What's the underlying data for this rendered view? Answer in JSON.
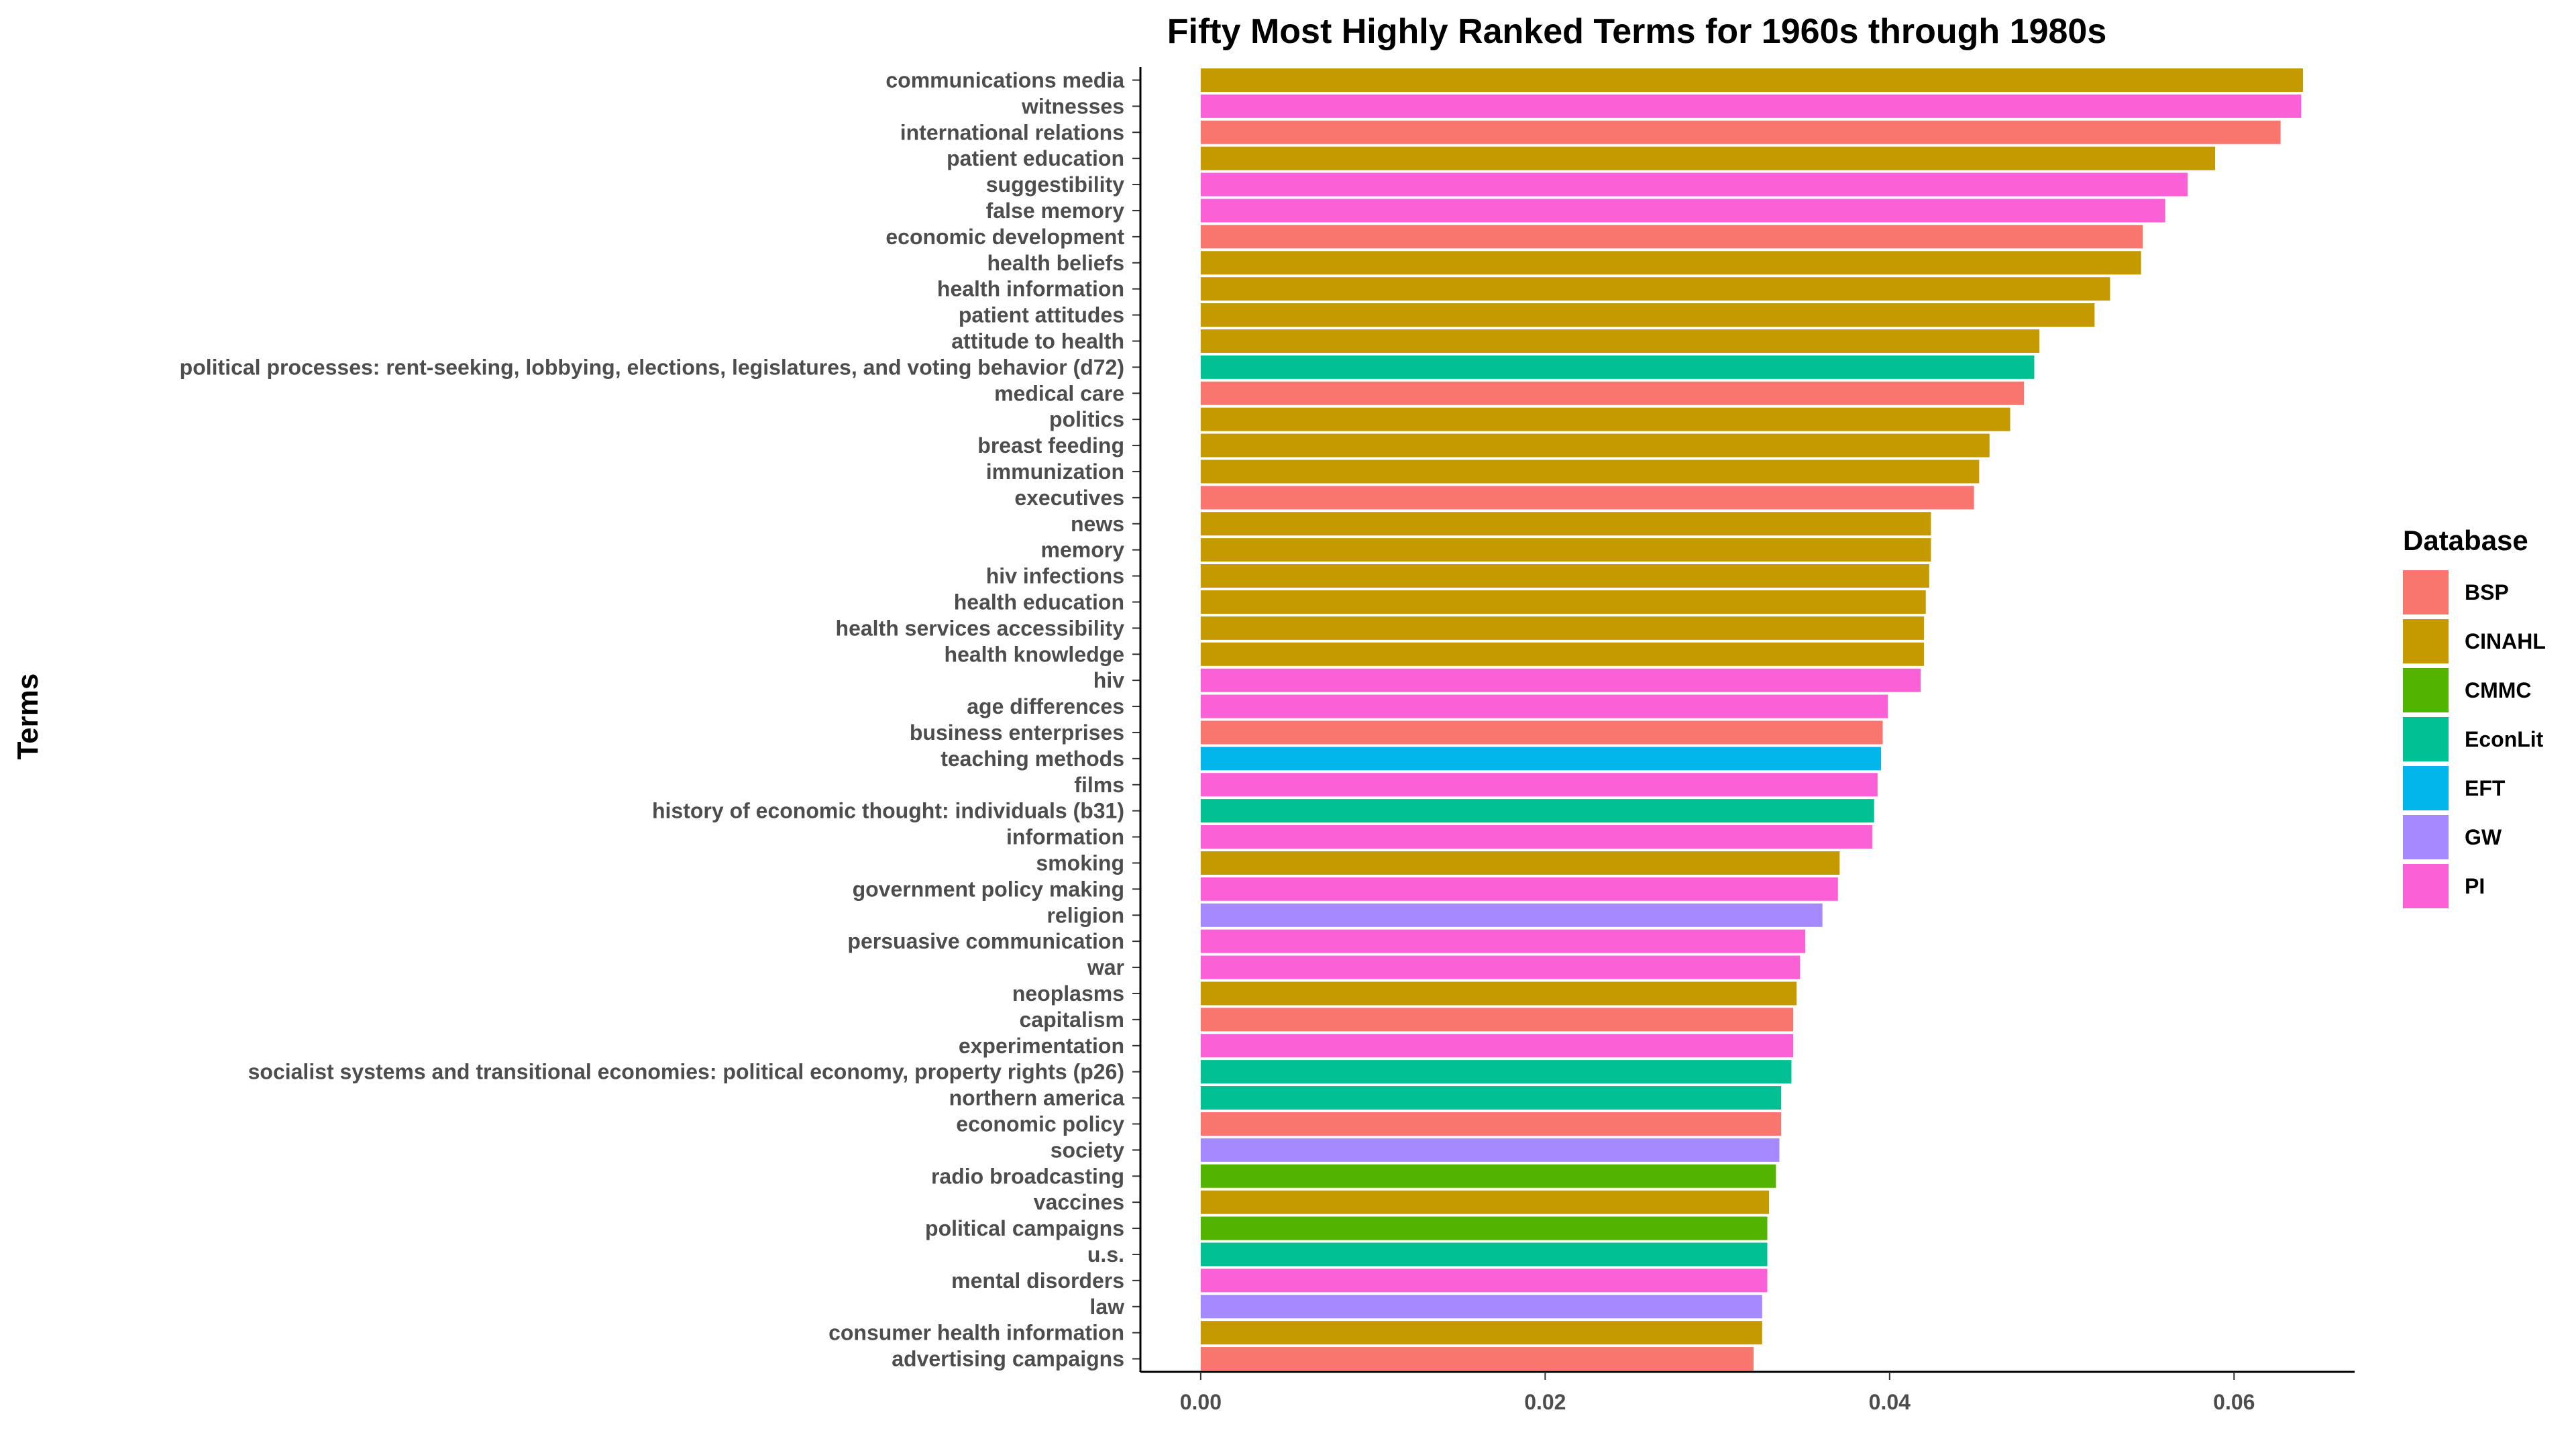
{
  "chart_data": {
    "type": "bar",
    "orientation": "horizontal",
    "title": "Fifty Most Highly Ranked Terms for 1960s through 1980s",
    "xlabel": "",
    "ylabel": "Terms",
    "xlim": [
      -0.0035,
      0.067
    ],
    "xticks": [
      0.0,
      0.02,
      0.04,
      0.06
    ],
    "xtick_labels": [
      "0.00",
      "0.02",
      "0.04",
      "0.06"
    ],
    "grid": false,
    "legend": {
      "title": "Database",
      "placement": "right",
      "entries": [
        {
          "name": "BSP",
          "color": "#F8766D"
        },
        {
          "name": "CINAHL",
          "color": "#C49A00"
        },
        {
          "name": "CMMC",
          "color": "#53B400"
        },
        {
          "name": "EconLit",
          "color": "#00C094"
        },
        {
          "name": "EFT",
          "color": "#00B6EB"
        },
        {
          "name": "GW",
          "color": "#A58AFF"
        },
        {
          "name": "PI",
          "color": "#FB61D7"
        }
      ]
    },
    "bars": [
      {
        "term": "communications media",
        "value": 0.064,
        "db": "CINAHL"
      },
      {
        "term": "witnesses",
        "value": 0.0639,
        "db": "PI"
      },
      {
        "term": "international relations",
        "value": 0.0627,
        "db": "BSP"
      },
      {
        "term": "patient education",
        "value": 0.0589,
        "db": "CINAHL"
      },
      {
        "term": "suggestibility",
        "value": 0.0573,
        "db": "PI"
      },
      {
        "term": "false memory",
        "value": 0.056,
        "db": "PI"
      },
      {
        "term": "economic development",
        "value": 0.0547,
        "db": "BSP"
      },
      {
        "term": "health beliefs",
        "value": 0.0546,
        "db": "CINAHL"
      },
      {
        "term": "health information",
        "value": 0.0528,
        "db": "CINAHL"
      },
      {
        "term": "patient attitudes",
        "value": 0.0519,
        "db": "CINAHL"
      },
      {
        "term": "attitude to health",
        "value": 0.0487,
        "db": "CINAHL"
      },
      {
        "term": "political processes: rent-seeking, lobbying, elections, legislatures, and voting behavior (d72)",
        "value": 0.0484,
        "db": "EconLit"
      },
      {
        "term": "medical care",
        "value": 0.0478,
        "db": "BSP"
      },
      {
        "term": "politics",
        "value": 0.047,
        "db": "CINAHL"
      },
      {
        "term": "breast feeding",
        "value": 0.0458,
        "db": "CINAHL"
      },
      {
        "term": "immunization",
        "value": 0.0452,
        "db": "CINAHL"
      },
      {
        "term": "executives",
        "value": 0.0449,
        "db": "BSP"
      },
      {
        "term": "news",
        "value": 0.0424,
        "db": "CINAHL"
      },
      {
        "term": "memory",
        "value": 0.0424,
        "db": "CINAHL"
      },
      {
        "term": "hiv infections",
        "value": 0.0423,
        "db": "CINAHL"
      },
      {
        "term": "health education",
        "value": 0.0421,
        "db": "CINAHL"
      },
      {
        "term": "health services accessibility",
        "value": 0.042,
        "db": "CINAHL"
      },
      {
        "term": "health knowledge",
        "value": 0.042,
        "db": "CINAHL"
      },
      {
        "term": "hiv",
        "value": 0.0418,
        "db": "PI"
      },
      {
        "term": "age differences",
        "value": 0.0399,
        "db": "PI"
      },
      {
        "term": "business enterprises",
        "value": 0.0396,
        "db": "BSP"
      },
      {
        "term": "teaching methods",
        "value": 0.0395,
        "db": "EFT"
      },
      {
        "term": "films",
        "value": 0.0393,
        "db": "PI"
      },
      {
        "term": "history of economic thought: individuals (b31)",
        "value": 0.0391,
        "db": "EconLit"
      },
      {
        "term": "information",
        "value": 0.039,
        "db": "PI"
      },
      {
        "term": "smoking",
        "value": 0.0371,
        "db": "CINAHL"
      },
      {
        "term": "government policy making",
        "value": 0.037,
        "db": "PI"
      },
      {
        "term": "religion",
        "value": 0.0361,
        "db": "GW"
      },
      {
        "term": "persuasive communication",
        "value": 0.0351,
        "db": "PI"
      },
      {
        "term": "war",
        "value": 0.0348,
        "db": "PI"
      },
      {
        "term": "neoplasms",
        "value": 0.0346,
        "db": "CINAHL"
      },
      {
        "term": "capitalism",
        "value": 0.0344,
        "db": "BSP"
      },
      {
        "term": "experimentation",
        "value": 0.0344,
        "db": "PI"
      },
      {
        "term": "socialist systems and transitional economies: political economy, property rights (p26)",
        "value": 0.0343,
        "db": "EconLit"
      },
      {
        "term": "northern america",
        "value": 0.0337,
        "db": "EconLit"
      },
      {
        "term": "economic policy",
        "value": 0.0337,
        "db": "BSP"
      },
      {
        "term": "society",
        "value": 0.0336,
        "db": "GW"
      },
      {
        "term": "radio broadcasting",
        "value": 0.0334,
        "db": "CMMC"
      },
      {
        "term": "vaccines",
        "value": 0.033,
        "db": "CINAHL"
      },
      {
        "term": "political campaigns",
        "value": 0.0329,
        "db": "CMMC"
      },
      {
        "term": "u.s.",
        "value": 0.0329,
        "db": "EconLit"
      },
      {
        "term": "mental disorders",
        "value": 0.0329,
        "db": "PI"
      },
      {
        "term": "law",
        "value": 0.0326,
        "db": "GW"
      },
      {
        "term": "consumer health information",
        "value": 0.0326,
        "db": "CINAHL"
      },
      {
        "term": "advertising campaigns",
        "value": 0.0321,
        "db": "BSP"
      }
    ]
  }
}
